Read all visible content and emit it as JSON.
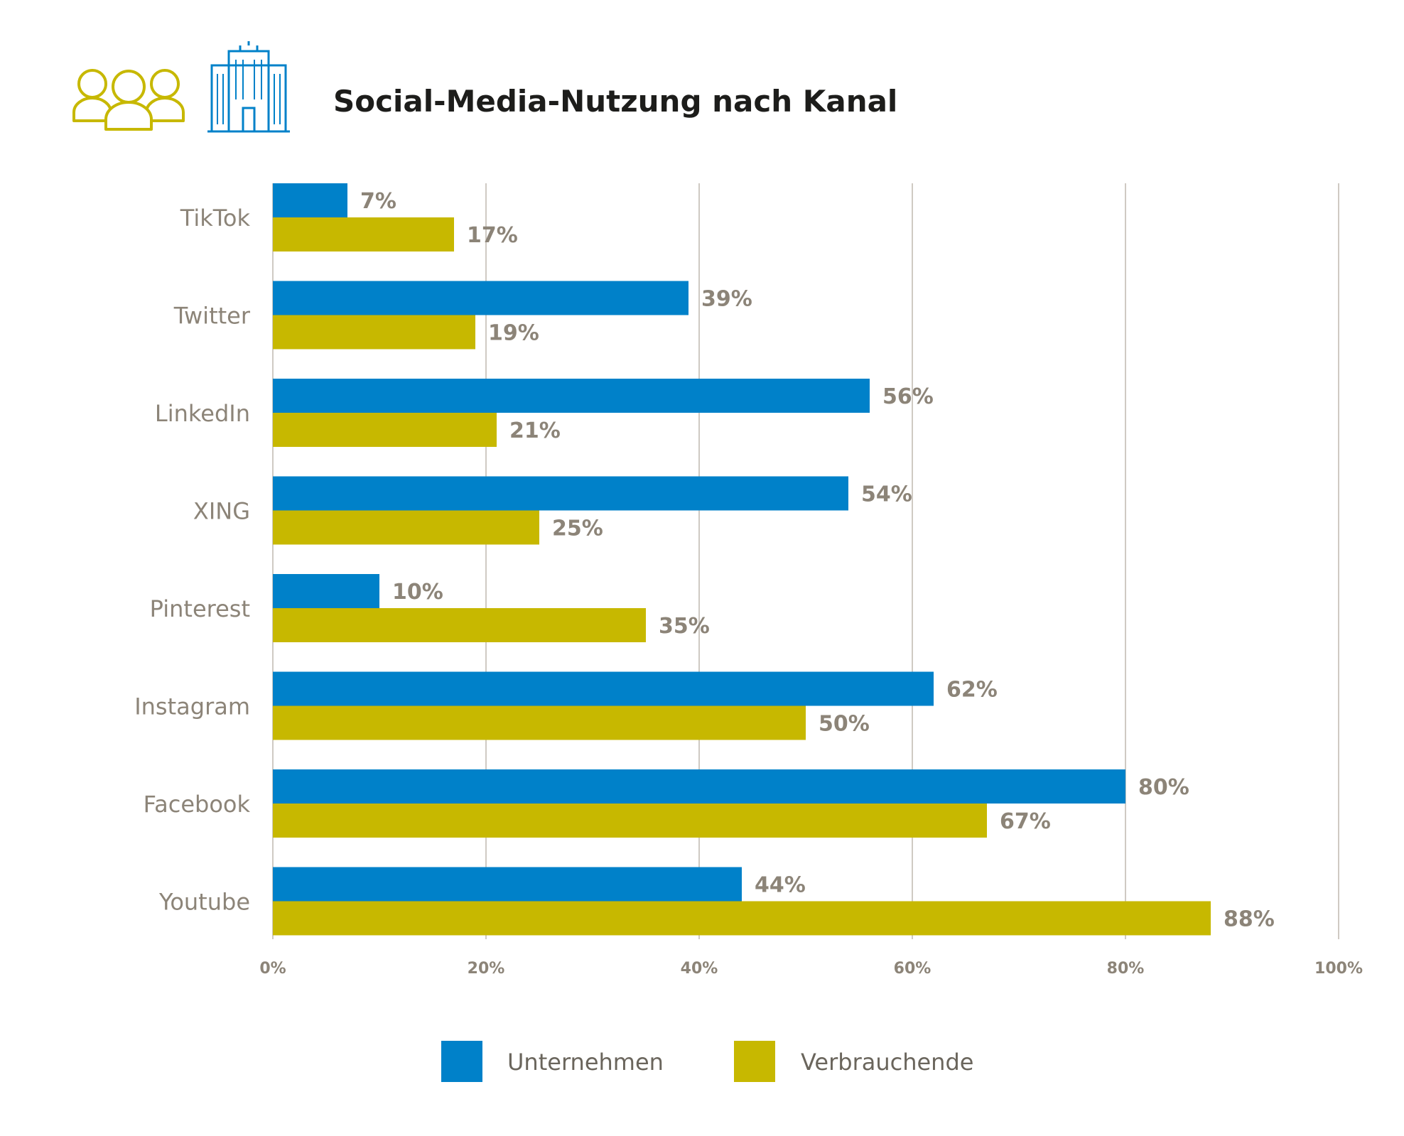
{
  "header": {
    "title": "Social-Media-Nutzung nach Kanal",
    "icons": [
      "people-group-icon",
      "office-building-icon"
    ]
  },
  "colors": {
    "unternehmen": "#0081c9",
    "verbrauchende": "#c7b800",
    "grid": "#cfcac3",
    "text": "#8c8478",
    "people_icon": "#c7b800",
    "building_icon": "#0081c9"
  },
  "chart_data": {
    "type": "bar",
    "orientation": "horizontal",
    "title": "Social-Media-Nutzung nach Kanal",
    "categories": [
      "TikTok",
      "Twitter",
      "LinkedIn",
      "XING",
      "Pinterest",
      "Instagram",
      "Facebook",
      "Youtube"
    ],
    "series": [
      {
        "name": "Unternehmen",
        "values": [
          7,
          39,
          56,
          54,
          10,
          62,
          80,
          44
        ]
      },
      {
        "name": "Verbrauchende",
        "values": [
          17,
          19,
          21,
          25,
          35,
          50,
          67,
          88
        ]
      }
    ],
    "value_suffix": "%",
    "xlim": [
      0,
      100
    ],
    "xticks": [
      "0%",
      "20%",
      "40%",
      "60%",
      "80%",
      "100%"
    ],
    "grid": true,
    "legend_position": "bottom-center"
  }
}
